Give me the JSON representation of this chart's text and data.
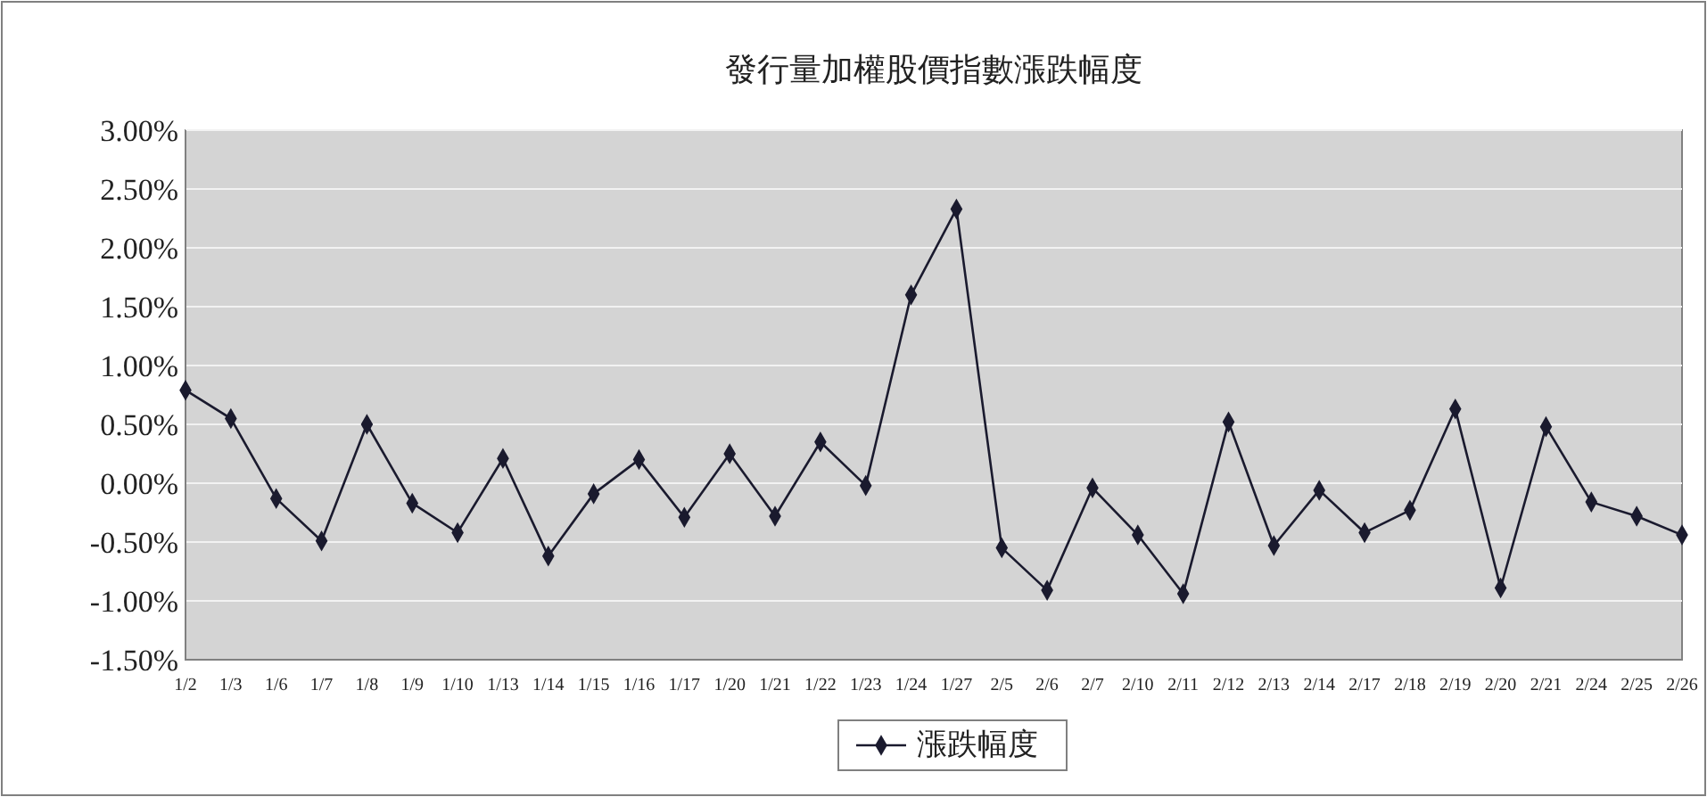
{
  "chart_data": {
    "type": "line",
    "title": "發行量加權股價指數漲跌幅度",
    "categories": [
      "1/2",
      "1/3",
      "1/6",
      "1/7",
      "1/8",
      "1/9",
      "1/10",
      "1/13",
      "1/14",
      "1/15",
      "1/16",
      "1/17",
      "1/20",
      "1/21",
      "1/22",
      "1/23",
      "1/24",
      "1/27",
      "2/5",
      "2/6",
      "2/7",
      "2/10",
      "2/11",
      "2/12",
      "2/13",
      "2/14",
      "2/17",
      "2/18",
      "2/19",
      "2/20",
      "2/21",
      "2/24",
      "2/25",
      "2/26"
    ],
    "series": [
      {
        "name": "漲跌幅度",
        "color": "#1a1a2e",
        "values": [
          0.79,
          0.55,
          -0.13,
          -0.49,
          0.5,
          -0.17,
          -0.42,
          0.21,
          -0.62,
          -0.09,
          0.2,
          -0.29,
          0.25,
          -0.28,
          0.35,
          -0.02,
          1.6,
          2.33,
          -0.55,
          -0.91,
          -0.04,
          -0.44,
          -0.94,
          0.52,
          -0.53,
          -0.06,
          -0.42,
          -0.23,
          0.63,
          -0.89,
          0.48,
          -0.16,
          -0.28,
          -0.44
        ]
      }
    ],
    "ylim": [
      -1.5,
      3
    ],
    "yticks": [
      {
        "value": -1.5,
        "label": "-1.50%"
      },
      {
        "value": -1,
        "label": "-1.00%"
      },
      {
        "value": -0.5,
        "label": "-0.50%"
      },
      {
        "value": 0,
        "label": "0.00%"
      },
      {
        "value": 0.5,
        "label": "0.50%"
      },
      {
        "value": 1,
        "label": "1.00%"
      },
      {
        "value": 1.5,
        "label": "1.50%"
      },
      {
        "value": 2,
        "label": "2.00%"
      },
      {
        "value": 2.5,
        "label": "2.50%"
      },
      {
        "value": 3,
        "label": "3.00%"
      }
    ],
    "grid": "y",
    "legend": "bottom",
    "marker": "diamond",
    "line_style": "solid"
  }
}
